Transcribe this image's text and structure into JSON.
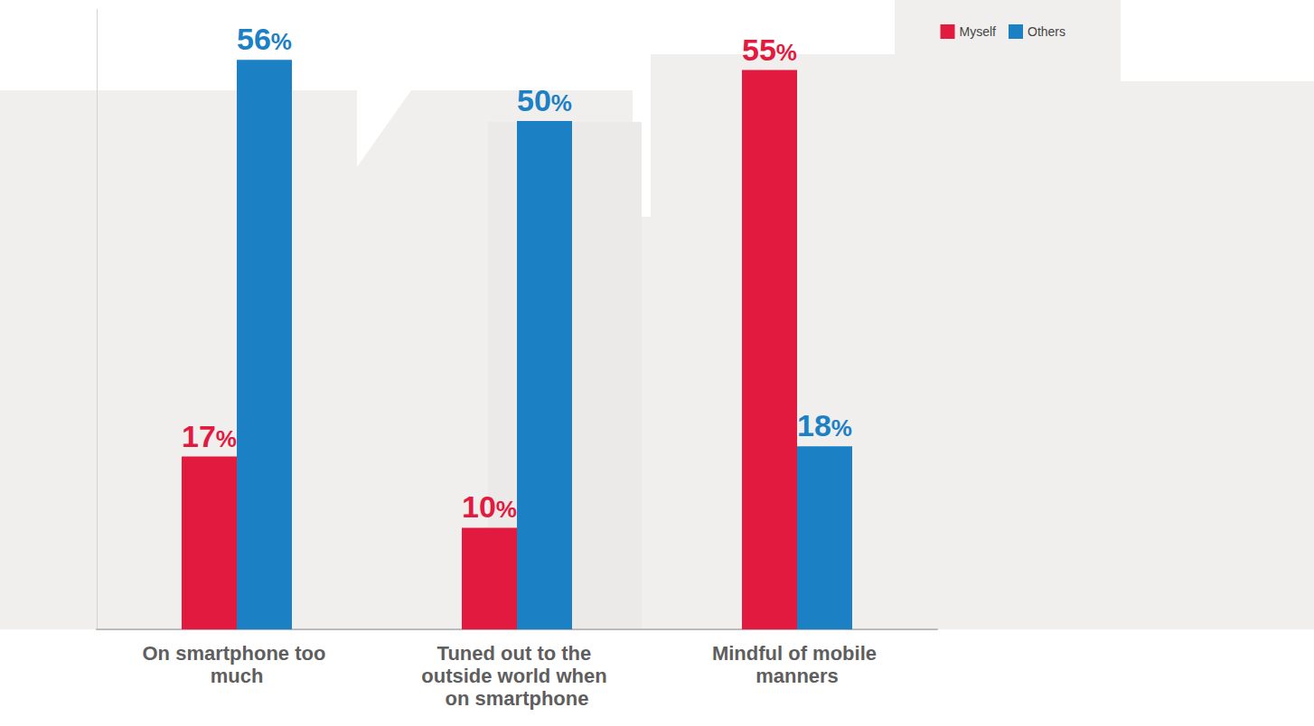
{
  "chart_data": {
    "type": "bar",
    "categories": [
      "On smartphone too much",
      "Tuned out to the outside world when on smartphone",
      "Mindful of mobile manners"
    ],
    "series": [
      {
        "name": "Myself",
        "color": "#e31a3f",
        "values": [
          17,
          10,
          55
        ],
        "value_labels": [
          "17%",
          "10%",
          "55%"
        ]
      },
      {
        "name": "Others",
        "color": "#1b80c4",
        "values": [
          56,
          50,
          18
        ],
        "value_labels": [
          "56%",
          "50%",
          "18%"
        ]
      }
    ],
    "ylim": [
      0,
      61
    ],
    "data_labels": true,
    "tick_labels": "x",
    "legend": "upper right",
    "grid": false
  }
}
